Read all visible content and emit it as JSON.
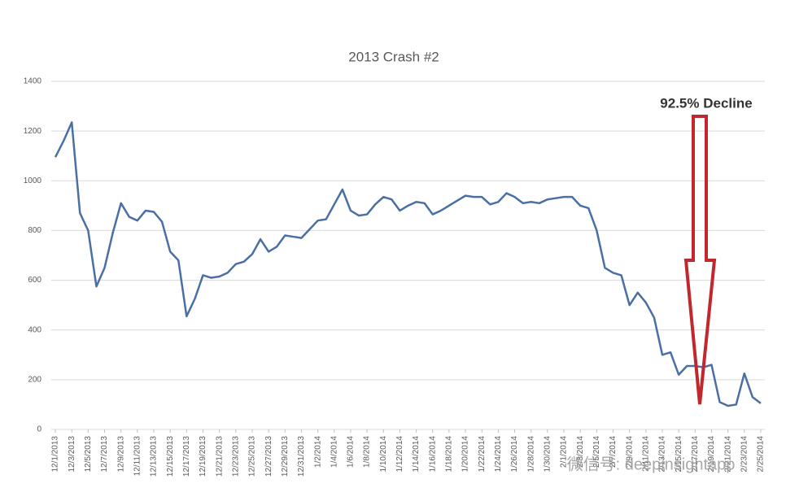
{
  "chart_data": {
    "type": "line",
    "title": "2013 Crash #2",
    "categories": [
      "12/1/2013",
      null,
      "12/3/2013",
      null,
      "12/5/2013",
      null,
      "12/7/2013",
      null,
      "12/9/2013",
      null,
      "12/11/2013",
      null,
      "12/13/2013",
      null,
      "12/15/2013",
      null,
      "12/17/2013",
      null,
      "12/19/2013",
      null,
      "12/21/2013",
      null,
      "12/23/2013",
      null,
      "12/25/2013",
      null,
      "12/27/2013",
      null,
      "12/29/2013",
      null,
      "12/31/2013",
      null,
      "1/2/2014",
      null,
      "1/4/2014",
      null,
      "1/6/2014",
      null,
      "1/8/2014",
      null,
      "1/10/2014",
      null,
      "1/12/2014",
      null,
      "1/14/2014",
      null,
      "1/16/2014",
      null,
      "1/18/2014",
      null,
      "1/20/2014",
      null,
      "1/22/2014",
      null,
      "1/24/2014",
      null,
      "1/26/2014",
      null,
      "1/28/2014",
      null,
      "1/30/2014",
      null,
      "2/1/2014",
      null,
      "2/3/2014",
      null,
      "2/5/2014",
      null,
      "2/7/2014",
      null,
      "2/9/2014",
      null,
      "2/11/2014",
      null,
      "2/13/2014",
      null,
      "2/15/2014",
      null,
      "2/17/2014",
      null,
      "2/19/2014",
      null,
      "2/21/2014",
      null,
      "2/23/2014",
      null,
      "2/25/2014"
    ],
    "values": [
      1095,
      1160,
      1235,
      870,
      800,
      575,
      650,
      790,
      910,
      855,
      840,
      880,
      875,
      835,
      715,
      680,
      455,
      525,
      620,
      610,
      615,
      630,
      665,
      675,
      705,
      765,
      715,
      735,
      780,
      775,
      770,
      805,
      840,
      845,
      905,
      965,
      880,
      860,
      865,
      905,
      935,
      925,
      880,
      900,
      915,
      910,
      865,
      880,
      900,
      920,
      940,
      935,
      935,
      905,
      915,
      950,
      935,
      910,
      915,
      910,
      925,
      930,
      935,
      935,
      900,
      890,
      800,
      650,
      630,
      620,
      500,
      550,
      510,
      450,
      300,
      310,
      220,
      255,
      255,
      250,
      260,
      110,
      95,
      100,
      225,
      130,
      105
    ],
    "color": "#4a6fa5",
    "ylim": [
      0,
      1400
    ],
    "yticks": [
      0,
      200,
      400,
      600,
      800,
      1000,
      1200,
      1400
    ],
    "grid": true,
    "annotation": "92.5% Decline",
    "watermark": "微信号: deepinsightapp"
  }
}
